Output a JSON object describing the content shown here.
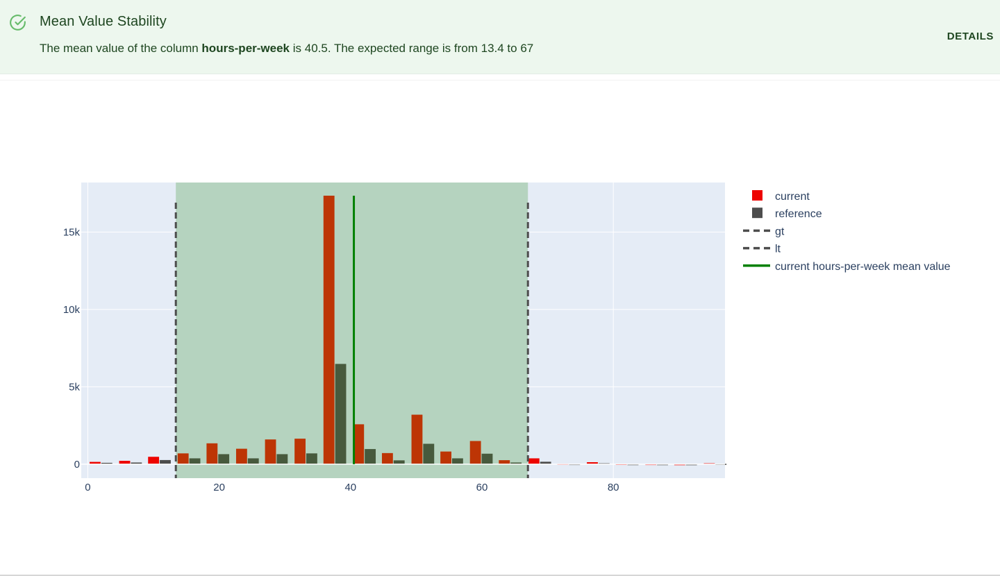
{
  "test": {
    "title": "Mean Value Stability",
    "status_icon": "check-circle-icon",
    "description_prefix": "The mean value of the column ",
    "column_name": "hours-per-week",
    "description_suffix": " is 40.5. The expected range is from 13.4 to 67",
    "details_label": "DETAILS"
  },
  "colors": {
    "header_bg": "#edf7ee",
    "success": "#66bb6a",
    "current": "#ed0400",
    "reference": "#4d4d4d",
    "threshold": "#4d4d4d",
    "mean_line": "#008000",
    "plot_bg": "#e5ecf6",
    "range_fill": "#b5d3bf"
  },
  "chart_data": {
    "type": "bar",
    "xlim": [
      -1,
      97
    ],
    "ylim": [
      -900,
      18200
    ],
    "x_ticks": [
      0,
      20,
      40,
      60,
      80
    ],
    "y_ticks": [
      0,
      5000,
      10000,
      15000
    ],
    "y_tick_labels": [
      "0",
      "5k",
      "10k",
      "15k"
    ],
    "bin_width": 4.45,
    "bin_centers": [
      2.0,
      6.5,
      10.9,
      15.4,
      19.8,
      24.3,
      28.7,
      33.2,
      37.6,
      42.1,
      46.5,
      51.0,
      55.4,
      59.9,
      64.3,
      68.8,
      73.2,
      77.7,
      82.1,
      86.6,
      91.0,
      95.5
    ],
    "series": [
      {
        "name": "current",
        "values": [
          150,
          220,
          480,
          700,
          1350,
          1000,
          1600,
          1650,
          17350,
          2580,
          720,
          3200,
          820,
          1500,
          260,
          380,
          30,
          130,
          20,
          15,
          5,
          60
        ]
      },
      {
        "name": "reference",
        "values": [
          90,
          110,
          270,
          380,
          650,
          380,
          650,
          700,
          6480,
          980,
          250,
          1320,
          380,
          680,
          110,
          160,
          15,
          60,
          8,
          6,
          3,
          25
        ]
      }
    ],
    "thresholds": [
      {
        "name": "gt",
        "x": 13.4
      },
      {
        "name": "lt",
        "x": 67
      }
    ],
    "mean_line": {
      "name": "current hours-per-week mean value",
      "x": 40.5,
      "y_top": 17350
    },
    "legend_position": "right"
  }
}
